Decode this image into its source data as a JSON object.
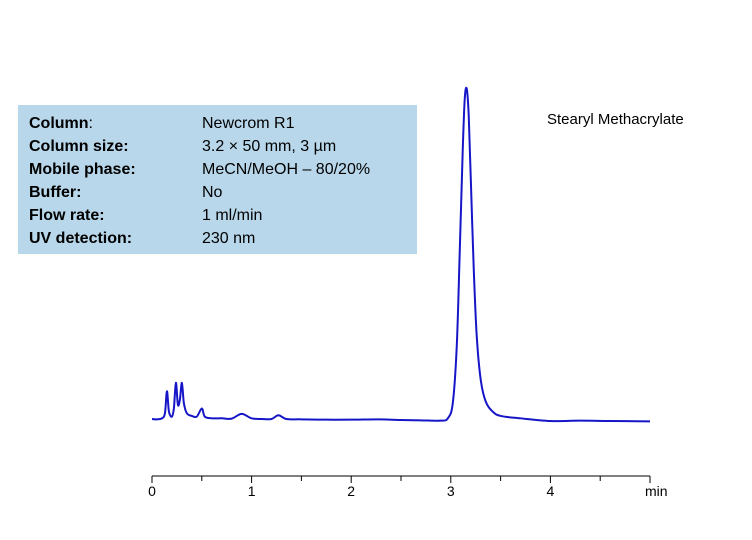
{
  "conditions": [
    {
      "label": "Column",
      "value": "Newcrom R1"
    },
    {
      "label": "Column size:",
      "value": "3.2 × 50 mm, 3 µm"
    },
    {
      "label": "Mobile phase:",
      "value": "MeCN/MeOH – 80/20%"
    },
    {
      "label": "Buffer:",
      "value": "No"
    },
    {
      "label": "Flow rate:",
      "value": "1 ml/min"
    },
    {
      "label": "UV detection:",
      "value": "230 nm"
    }
  ],
  "compound": "Stearyl Methacrylate",
  "chart_data": {
    "type": "line",
    "xlabel": "min",
    "ylabel": "",
    "xlim": [
      0,
      5
    ],
    "ylim": [
      0,
      100
    ],
    "x_ticks": [
      0,
      1,
      2,
      3,
      4
    ],
    "x_tick_labels": [
      "0",
      "1",
      "2",
      "3",
      "4"
    ],
    "grid": false,
    "legend": "none",
    "line_color": "#1616c8",
    "series": [
      {
        "x": [
          0,
          0.05,
          0.1,
          0.13,
          0.15,
          0.17,
          0.2,
          0.22,
          0.24,
          0.26,
          0.28,
          0.3,
          0.32,
          0.35,
          0.4,
          0.45,
          0.5,
          0.53,
          0.6,
          0.7,
          0.8,
          0.9,
          1.0,
          1.1,
          1.2,
          1.27,
          1.35,
          1.5,
          1.75,
          2.0,
          2.27,
          2.5,
          2.7,
          2.9,
          2.97,
          3.02,
          3.06,
          3.09,
          3.12,
          3.14,
          3.16,
          3.18,
          3.2,
          3.23,
          3.26,
          3.3,
          3.35,
          3.42,
          3.5,
          3.7,
          4.0,
          4.3,
          4.6,
          5.0
        ],
        "y": [
          0.3,
          0.2,
          0.5,
          2.0,
          8.5,
          2.5,
          1.0,
          3.5,
          11.0,
          4.5,
          6.0,
          11.0,
          5.0,
          2.0,
          1.2,
          1.0,
          3.4,
          1.0,
          0.5,
          0.5,
          0.4,
          1.8,
          0.5,
          0.3,
          0.3,
          1.4,
          0.3,
          0.2,
          0.1,
          0.1,
          0.2,
          0.0,
          -0.1,
          -0.2,
          0.5,
          5.0,
          22.0,
          50.0,
          80.0,
          95.0,
          98.0,
          90.0,
          72.0,
          45.0,
          25.0,
          12.0,
          5.5,
          2.5,
          1.2,
          0.5,
          -0.3,
          -0.2,
          -0.3,
          -0.4
        ]
      }
    ]
  }
}
